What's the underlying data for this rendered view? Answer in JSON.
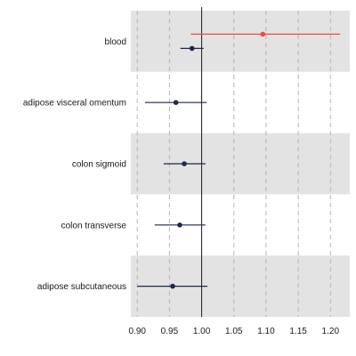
{
  "chart_data": {
    "type": "forest",
    "categories": [
      "blood",
      "adipose visceral omentum",
      "colon sigmoid",
      "colon transverse",
      "adipose subcutaneous"
    ],
    "series": [
      {
        "color": "#ee4b4b",
        "points": [
          {
            "category": "blood",
            "estimate": 1.095,
            "lower": 0.983,
            "upper": 1.215
          }
        ]
      },
      {
        "color": "#1d2748",
        "points": [
          {
            "category": "blood",
            "estimate": 0.985,
            "lower": 0.967,
            "upper": 1.003
          },
          {
            "category": "adipose visceral omentum",
            "estimate": 0.96,
            "lower": 0.912,
            "upper": 1.008
          },
          {
            "category": "colon sigmoid",
            "estimate": 0.973,
            "lower": 0.941,
            "upper": 1.006
          },
          {
            "category": "colon transverse",
            "estimate": 0.966,
            "lower": 0.927,
            "upper": 1.006
          },
          {
            "category": "adipose subcutaneous",
            "estimate": 0.955,
            "lower": 0.9,
            "upper": 1.009
          }
        ]
      }
    ],
    "reference_line": 1.0,
    "xlim": [
      0.89,
      1.23
    ],
    "x_ticks": [
      0.9,
      0.95,
      1.0,
      1.05,
      1.1,
      1.15,
      1.2
    ],
    "x_tick_labels": [
      "0.90",
      "0.95",
      "1.00",
      "1.05",
      "1.10",
      "1.15",
      "1.20"
    ],
    "grid": "vertical-dashed",
    "band_colors": [
      "#e3e3e3",
      "#ffffff"
    ],
    "title": "",
    "xlabel": "",
    "ylabel": ""
  }
}
